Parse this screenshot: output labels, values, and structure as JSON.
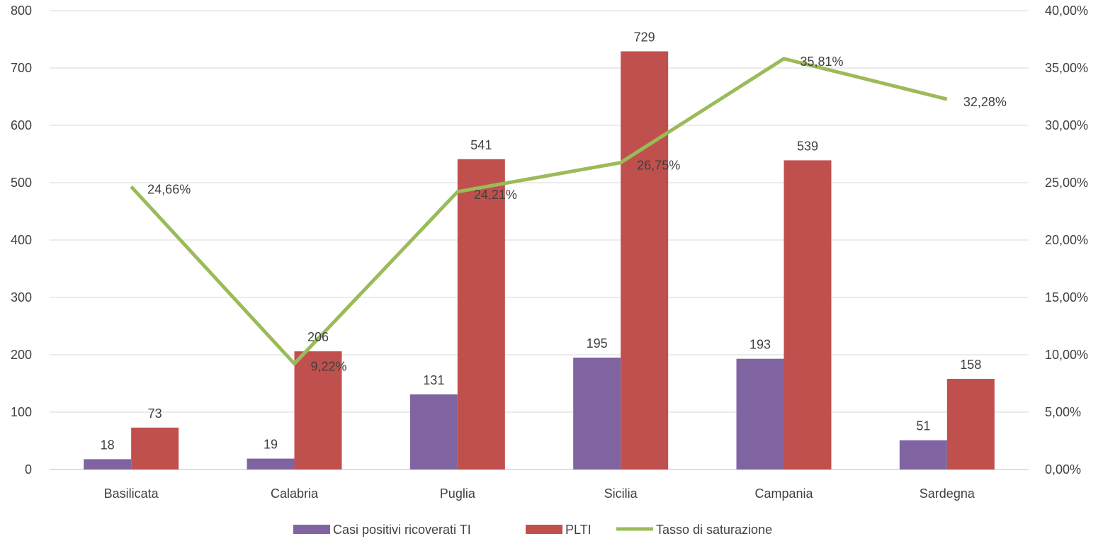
{
  "chart_data": {
    "type": "bar",
    "categories": [
      "Basilicata",
      "Calabria",
      "Puglia",
      "Sicilia",
      "Campania",
      "Sardegna"
    ],
    "series": [
      {
        "name": "Casi positivi ricoverati TI",
        "type": "bar",
        "axis": "left",
        "color": "#8064a2",
        "values": [
          18,
          19,
          131,
          195,
          193,
          51
        ],
        "labels": [
          "18",
          "19",
          "131",
          "195",
          "193",
          "51"
        ]
      },
      {
        "name": "PLTI",
        "type": "bar",
        "axis": "left",
        "color": "#c0504d",
        "values": [
          73,
          206,
          541,
          729,
          539,
          158
        ],
        "labels": [
          "73",
          "206",
          "541",
          "729",
          "539",
          "158"
        ]
      },
      {
        "name": "Tasso di saturazione",
        "type": "line",
        "axis": "right",
        "color": "#9bbb59",
        "values": [
          24.66,
          9.22,
          24.21,
          26.75,
          35.81,
          32.28
        ],
        "labels": [
          "24,66%",
          "9,22%",
          "24,21%",
          "26,75%",
          "35,81%",
          "32,28%"
        ]
      }
    ],
    "ylim_left": [
      0,
      800
    ],
    "ylim_right": [
      0,
      40
    ],
    "yticks_left": [
      "0",
      "100",
      "200",
      "300",
      "400",
      "500",
      "600",
      "700",
      "800"
    ],
    "yticks_right": [
      "0,00%",
      "5,00%",
      "10,00%",
      "15,00%",
      "20,00%",
      "25,00%",
      "30,00%",
      "35,00%",
      "40,00%"
    ],
    "grid": true,
    "legend_position": "bottom"
  }
}
